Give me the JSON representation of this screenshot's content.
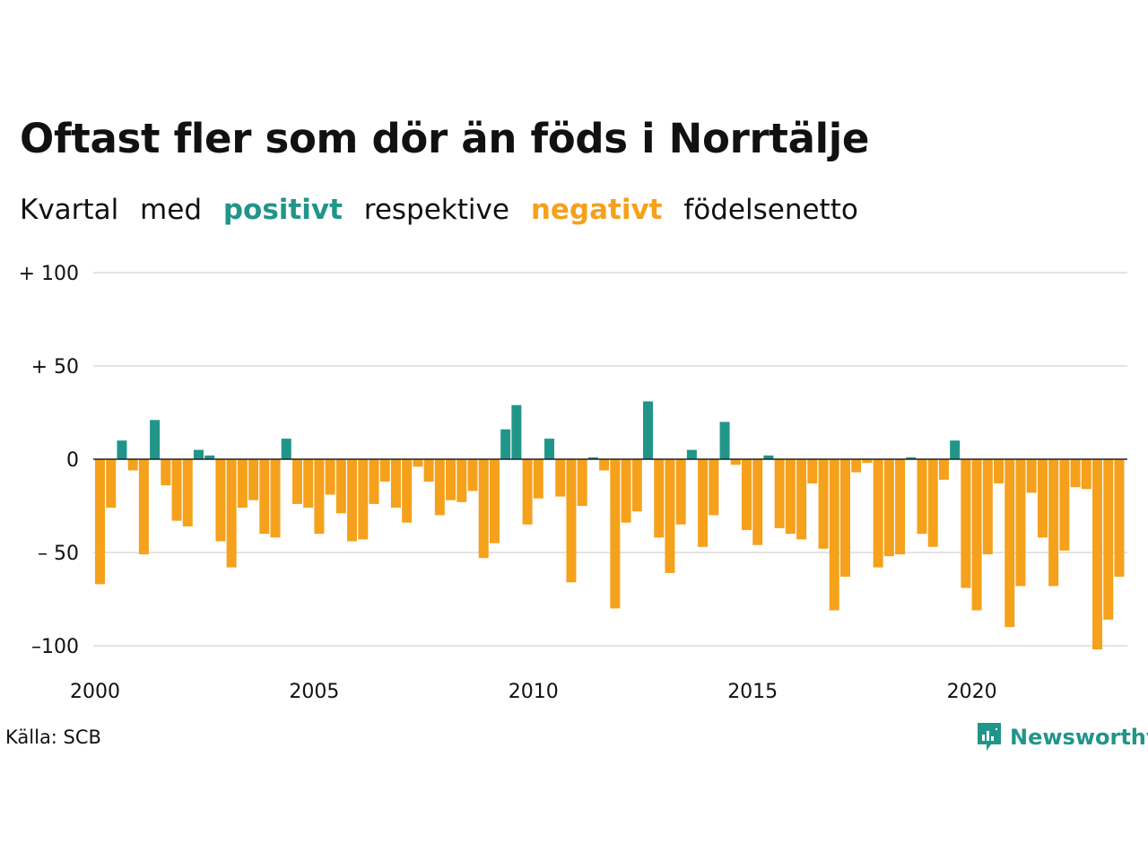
{
  "title": "Oftast fler som dör än föds i Norrtälje",
  "subtitle": {
    "part1": "Kvartal",
    "part2": "med",
    "positive": "positivt",
    "part3": "respektive",
    "negative": "negativt",
    "part4": "födelsenetto"
  },
  "colors": {
    "positive": "#21958a",
    "negative": "#f5a11c",
    "grid": "#e4e4e4",
    "text": "#111111"
  },
  "source": "Källa: SCB",
  "brand": {
    "name": "Newsworthy",
    "icon": "newsworthy-logo-icon"
  },
  "chart_data": {
    "type": "bar",
    "title": "Oftast fler som dör än föds i Norrtälje",
    "subtitle": "Kvartal med positivt respektive negativt födelsenetto",
    "x_start": "2000",
    "x_step": "quarter",
    "x_ticks": [
      "2000",
      "2005",
      "2010",
      "2015",
      "2020"
    ],
    "y_ticks": [
      {
        "value": 100,
        "label": "+ 100"
      },
      {
        "value": 50,
        "label": "+  50"
      },
      {
        "value": 0,
        "label": "0"
      },
      {
        "value": -50,
        "label": "– 50"
      },
      {
        "value": -100,
        "label": "–100"
      }
    ],
    "ylim": [
      -102,
      100
    ],
    "grid": true,
    "values": [
      -67,
      -26,
      10,
      -6,
      -51,
      21,
      -14,
      -33,
      -36,
      5,
      2,
      -44,
      -58,
      -26,
      -22,
      -40,
      -42,
      11,
      -24,
      -26,
      -40,
      -19,
      -29,
      -44,
      -43,
      -24,
      -12,
      -26,
      -34,
      -4,
      -12,
      -30,
      -22,
      -23,
      -17,
      -53,
      -45,
      16,
      29,
      -35,
      -21,
      11,
      -20,
      -66,
      -25,
      1,
      -6,
      -80,
      -34,
      -28,
      31,
      -42,
      -61,
      -35,
      5,
      -47,
      -30,
      20,
      -3,
      -38,
      -46,
      2,
      -37,
      -40,
      -43,
      -13,
      -48,
      -81,
      -63,
      -7,
      -2,
      -58,
      -52,
      -51,
      1,
      -40,
      -47,
      -11,
      10,
      -69,
      -81,
      -51,
      -13,
      -90,
      -68,
      -18,
      -42,
      -68,
      -49,
      -15,
      -16,
      -102,
      -86,
      -63
    ]
  }
}
